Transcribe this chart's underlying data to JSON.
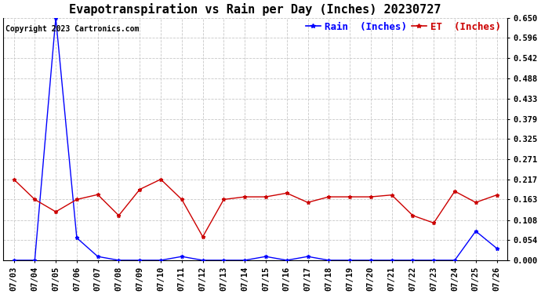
{
  "title": "Evapotranspiration vs Rain per Day (Inches) 20230727",
  "copyright": "Copyright 2023 Cartronics.com",
  "x_labels": [
    "07/03",
    "07/04",
    "07/05",
    "07/06",
    "07/07",
    "07/08",
    "07/09",
    "07/10",
    "07/11",
    "07/12",
    "07/13",
    "07/14",
    "07/15",
    "07/16",
    "07/17",
    "07/18",
    "07/19",
    "07/20",
    "07/21",
    "07/22",
    "07/23",
    "07/24",
    "07/25",
    "07/26"
  ],
  "rain_values": [
    0.0,
    0.0,
    0.65,
    0.06,
    0.01,
    0.0,
    0.0,
    0.0,
    0.01,
    0.0,
    0.0,
    0.0,
    0.01,
    0.0,
    0.01,
    0.0,
    0.0,
    0.0,
    0.0,
    0.0,
    0.0,
    0.0,
    0.078,
    0.032
  ],
  "et_values": [
    0.217,
    0.163,
    0.13,
    0.163,
    0.176,
    0.12,
    0.19,
    0.217,
    0.163,
    0.063,
    0.163,
    0.17,
    0.17,
    0.18,
    0.155,
    0.17,
    0.17,
    0.17,
    0.175,
    0.12,
    0.1,
    0.185,
    0.155,
    0.175
  ],
  "rain_color": "#0000ff",
  "et_color": "#cc0000",
  "ylim": [
    0.0,
    0.65
  ],
  "yticks": [
    0.0,
    0.054,
    0.108,
    0.163,
    0.217,
    0.271,
    0.325,
    0.379,
    0.433,
    0.488,
    0.542,
    0.596,
    0.65
  ],
  "legend_rain_label": "Rain  (Inches)",
  "legend_et_label": "ET  (Inches)",
  "background_color": "#ffffff",
  "grid_color": "#c8c8c8",
  "title_fontsize": 11,
  "tick_fontsize": 7.5,
  "legend_fontsize": 9,
  "copyright_fontsize": 7
}
